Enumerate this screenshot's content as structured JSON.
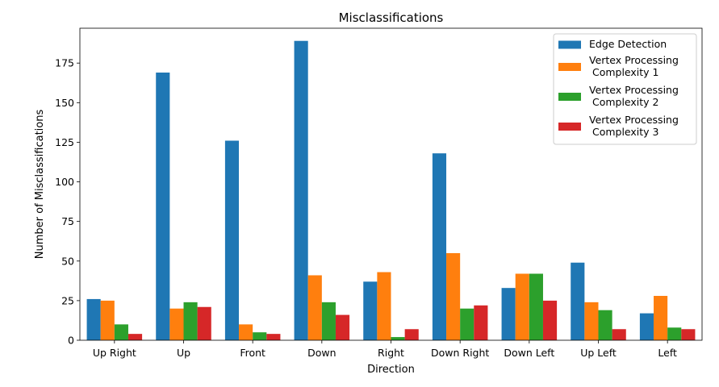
{
  "chart_data": {
    "type": "bar",
    "title": "Misclassifications",
    "xlabel": "Direction",
    "ylabel": "Number of Misclassifications",
    "categories": [
      "Up Right",
      "Up",
      "Front",
      "Down",
      "Right",
      "Down Right",
      "Down Left",
      "Up Left",
      "Left"
    ],
    "ylim": [
      0,
      197
    ],
    "yticks": [
      0,
      25,
      50,
      75,
      100,
      125,
      150,
      175
    ],
    "grid": false,
    "legend_position": "top-right",
    "series": [
      {
        "name": "Edge Detection",
        "color": "#1f77b4",
        "values": [
          26,
          169,
          126,
          189,
          37,
          118,
          33,
          49,
          17
        ]
      },
      {
        "name": "Vertex Processing\n Complexity 1",
        "color": "#ff7f0e",
        "values": [
          25,
          20,
          10,
          41,
          43,
          55,
          42,
          24,
          28
        ]
      },
      {
        "name": "Vertex Processing\n Complexity 2",
        "color": "#2ca02c",
        "values": [
          10,
          24,
          5,
          24,
          2,
          20,
          42,
          19,
          8
        ]
      },
      {
        "name": "Vertex Processing\n Complexity 3",
        "color": "#d62728",
        "values": [
          4,
          21,
          4,
          16,
          7,
          22,
          25,
          7,
          7
        ]
      }
    ]
  }
}
